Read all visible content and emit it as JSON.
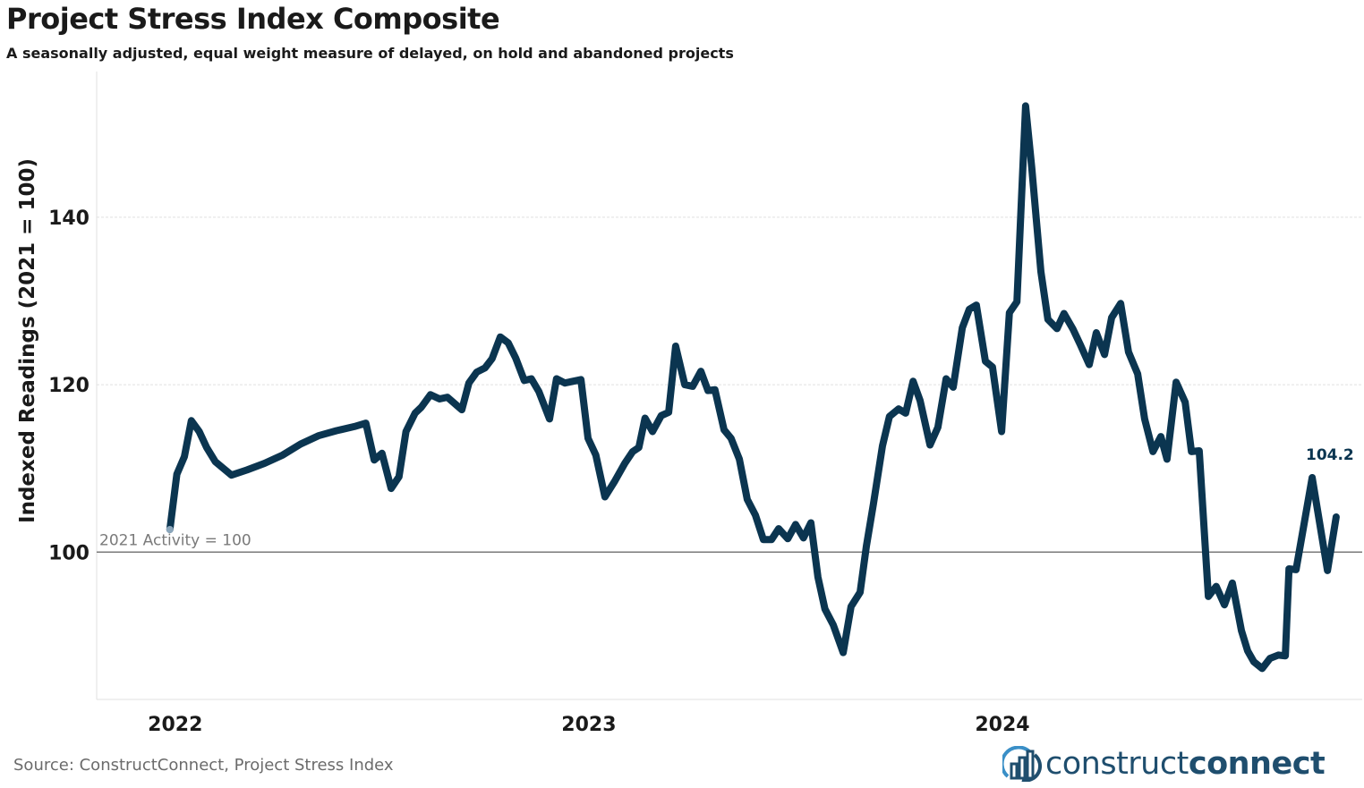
{
  "header": {
    "title": "Project Stress Index Composite",
    "subtitle": "A seasonally adjusted, equal weight measure of delayed, on hold and abandoned projects"
  },
  "footer": {
    "source": "Source: ConstructConnect, Project Stress Index",
    "logo_text_1": "construct",
    "logo_text_2": "connect"
  },
  "colors": {
    "line": "#0b3550",
    "reference": "#7a7a7a",
    "grid": "#e0e0e0",
    "logo": "#1f4e6e",
    "first_point": "#8aa6bb"
  },
  "chart_data": {
    "type": "line",
    "title": "Project Stress Index Composite",
    "subtitle": "A seasonally adjusted, equal weight measure of delayed, on hold and abandoned projects",
    "ylabel": "Indexed Readings (2021 = 100)",
    "xlabel": "",
    "x_ticks": [
      {
        "value": 2022,
        "label": "2022"
      },
      {
        "value": 2023,
        "label": "2023"
      },
      {
        "value": 2024,
        "label": "2024"
      }
    ],
    "y_ticks": [
      {
        "value": 100,
        "label": "100"
      },
      {
        "value": 120,
        "label": "120"
      },
      {
        "value": 140,
        "label": "140"
      }
    ],
    "xlim": [
      2021.81,
      2024.87
    ],
    "ylim": [
      82.4,
      157.4
    ],
    "grid": "horizontal",
    "reference_line": {
      "value": 100,
      "label": "2021 Activity = 100"
    },
    "last_value_label": "104.2",
    "points": [
      [
        2021.987,
        102.7
      ],
      [
        2022.004,
        109.3
      ],
      [
        2022.022,
        111.4
      ],
      [
        2022.039,
        115.7
      ],
      [
        2022.058,
        114.4
      ],
      [
        2022.076,
        112.5
      ],
      [
        2022.097,
        110.8
      ],
      [
        2022.136,
        109.2
      ],
      [
        2022.173,
        109.8
      ],
      [
        2022.216,
        110.6
      ],
      [
        2022.26,
        111.6
      ],
      [
        2022.303,
        112.9
      ],
      [
        2022.346,
        113.9
      ],
      [
        2022.39,
        114.5
      ],
      [
        2022.433,
        115.0
      ],
      [
        2022.461,
        115.4
      ],
      [
        2022.481,
        111.0
      ],
      [
        2022.5,
        111.8
      ],
      [
        2022.522,
        107.6
      ],
      [
        2022.541,
        109.0
      ],
      [
        2022.558,
        114.4
      ],
      [
        2022.58,
        116.6
      ],
      [
        2022.595,
        117.3
      ],
      [
        2022.617,
        118.8
      ],
      [
        2022.639,
        118.3
      ],
      [
        2022.658,
        118.5
      ],
      [
        2022.693,
        117.0
      ],
      [
        2022.71,
        120.2
      ],
      [
        2022.729,
        121.5
      ],
      [
        2022.749,
        122.0
      ],
      [
        2022.766,
        123.1
      ],
      [
        2022.786,
        125.7
      ],
      [
        2022.805,
        125.0
      ],
      [
        2022.823,
        123.2
      ],
      [
        2022.844,
        120.5
      ],
      [
        2022.861,
        120.7
      ],
      [
        2022.879,
        119.2
      ],
      [
        2022.905,
        115.9
      ],
      [
        2022.922,
        120.7
      ],
      [
        2022.942,
        120.2
      ],
      [
        2022.981,
        120.6
      ],
      [
        2022.998,
        113.6
      ],
      [
        2023.017,
        111.6
      ],
      [
        2023.039,
        106.6
      ],
      [
        2023.063,
        108.5
      ],
      [
        2023.087,
        110.6
      ],
      [
        2023.106,
        112.0
      ],
      [
        2023.121,
        112.5
      ],
      [
        2023.136,
        116.0
      ],
      [
        2023.154,
        114.4
      ],
      [
        2023.175,
        116.3
      ],
      [
        2023.193,
        116.7
      ],
      [
        2023.21,
        124.6
      ],
      [
        2023.232,
        120.0
      ],
      [
        2023.251,
        119.8
      ],
      [
        2023.271,
        121.6
      ],
      [
        2023.288,
        119.3
      ],
      [
        2023.305,
        119.4
      ],
      [
        2023.327,
        114.6
      ],
      [
        2023.344,
        113.6
      ],
      [
        2023.364,
        111.1
      ],
      [
        2023.383,
        106.3
      ],
      [
        2023.403,
        104.4
      ],
      [
        2023.422,
        101.5
      ],
      [
        2023.442,
        101.5
      ],
      [
        2023.459,
        102.8
      ],
      [
        2023.481,
        101.6
      ],
      [
        2023.5,
        103.3
      ],
      [
        2023.519,
        101.7
      ],
      [
        2023.537,
        103.5
      ],
      [
        2023.554,
        97.0
      ],
      [
        2023.571,
        93.2
      ],
      [
        2023.591,
        91.3
      ],
      [
        2023.615,
        88.0
      ],
      [
        2023.634,
        93.5
      ],
      [
        2023.656,
        95.2
      ],
      [
        2023.671,
        100.7
      ],
      [
        2023.688,
        105.7
      ],
      [
        2023.71,
        112.7
      ],
      [
        2023.727,
        116.2
      ],
      [
        2023.749,
        117.1
      ],
      [
        2023.766,
        116.6
      ],
      [
        2023.784,
        120.4
      ],
      [
        2023.801,
        118.1
      ],
      [
        2023.825,
        112.8
      ],
      [
        2023.844,
        114.9
      ],
      [
        2023.864,
        120.7
      ],
      [
        2023.881,
        119.7
      ],
      [
        2023.903,
        126.8
      ],
      [
        2023.92,
        129.0
      ],
      [
        2023.937,
        129.5
      ],
      [
        2023.959,
        122.8
      ],
      [
        2023.976,
        122.1
      ],
      [
        2023.998,
        114.4
      ],
      [
        2024.017,
        128.6
      ],
      [
        2024.035,
        129.9
      ],
      [
        2024.056,
        153.3
      ],
      [
        2024.071,
        145.9
      ],
      [
        2024.093,
        133.5
      ],
      [
        2024.11,
        127.8
      ],
      [
        2024.132,
        126.7
      ],
      [
        2024.149,
        128.5
      ],
      [
        2024.171,
        126.6
      ],
      [
        2024.188,
        124.8
      ],
      [
        2024.21,
        122.4
      ],
      [
        2024.227,
        126.2
      ],
      [
        2024.247,
        123.6
      ],
      [
        2024.264,
        128.0
      ],
      [
        2024.286,
        129.7
      ],
      [
        2024.305,
        123.9
      ],
      [
        2024.327,
        121.3
      ],
      [
        2024.344,
        115.9
      ],
      [
        2024.364,
        112.0
      ],
      [
        2024.383,
        113.8
      ],
      [
        2024.398,
        111.1
      ],
      [
        2024.42,
        120.3
      ],
      [
        2024.442,
        117.9
      ],
      [
        2024.457,
        112.0
      ],
      [
        2024.476,
        112.1
      ],
      [
        2024.498,
        94.7
      ],
      [
        2024.517,
        95.9
      ],
      [
        2024.537,
        93.7
      ],
      [
        2024.556,
        96.3
      ],
      [
        2024.578,
        90.6
      ],
      [
        2024.593,
        88.2
      ],
      [
        2024.608,
        86.9
      ],
      [
        2024.628,
        86.1
      ],
      [
        2024.647,
        87.3
      ],
      [
        2024.667,
        87.7
      ],
      [
        2024.684,
        87.6
      ],
      [
        2024.693,
        98.0
      ],
      [
        2024.71,
        97.9
      ],
      [
        2024.749,
        108.9
      ],
      [
        2024.786,
        97.8
      ],
      [
        2024.807,
        104.2
      ]
    ]
  }
}
